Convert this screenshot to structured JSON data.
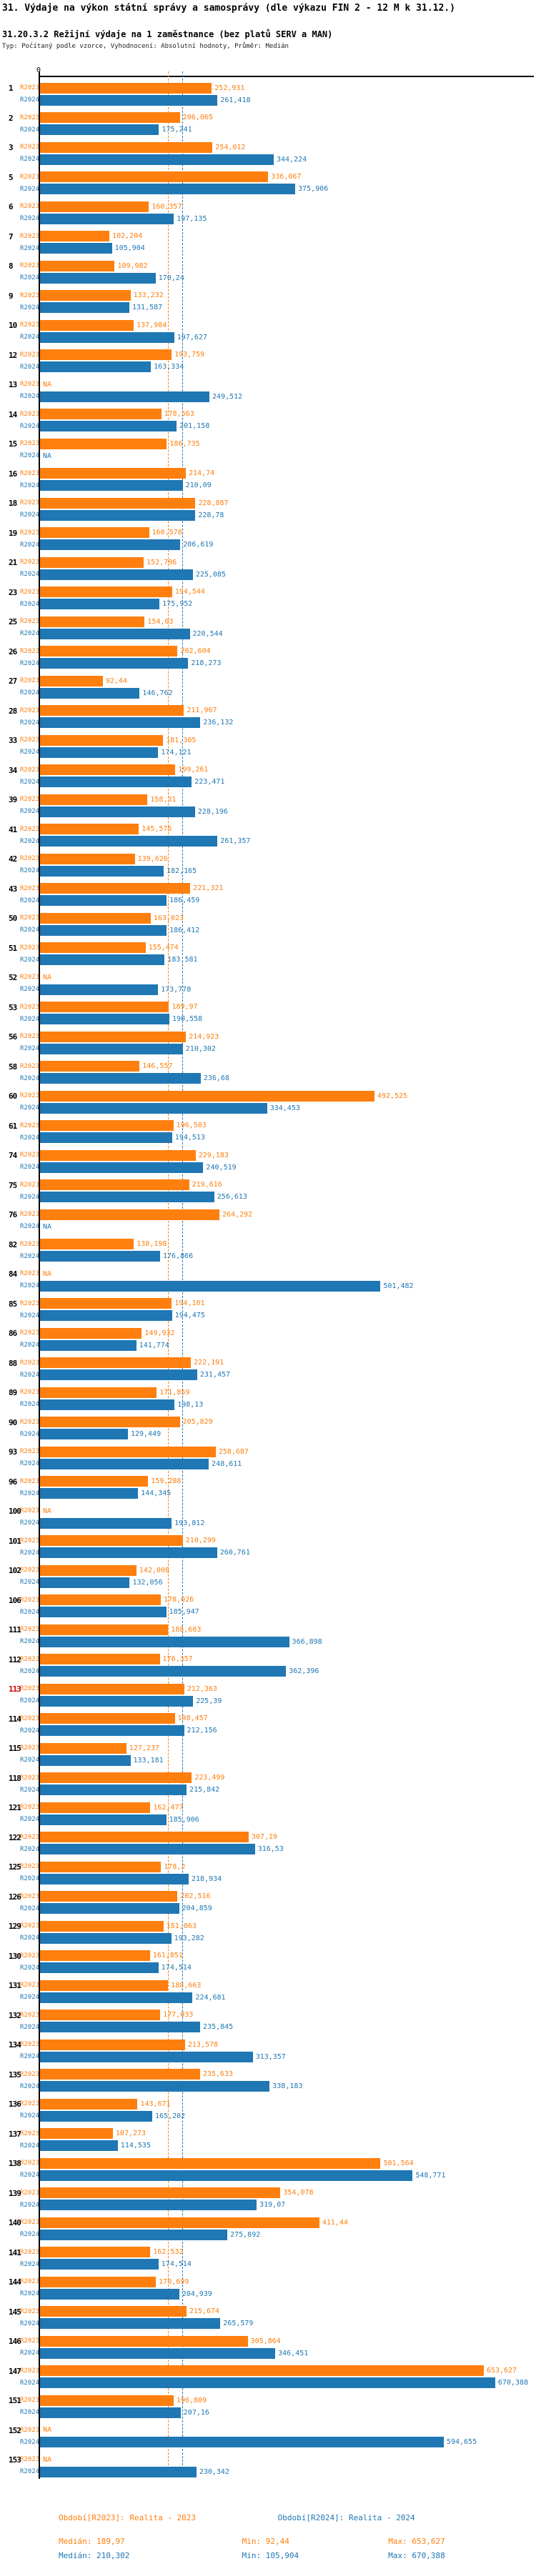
{
  "title": "31. Výdaje na výkon státní správy a samosprávy (dle výkazu FIN 2 - 12 M k 31.12.)",
  "subtitle": "31.20.3.2 Režijní výdaje na 1 zaměstnance (bez platů SERV a MAN)",
  "type_line": "Typ: Počítaný podle vzorce, Vyhodnocení: Absolutní hodnoty, Průměr: Medián",
  "colors": {
    "r2023": "#ff7f0e",
    "r2024": "#1f77b4",
    "highlight": "#cc0000"
  },
  "axis": {
    "zero_label": "0"
  },
  "series_labels": {
    "r2023": "R2023",
    "r2024": "R2024"
  },
  "legend": {
    "r2023": "Období[R2023]: Realita - 2023",
    "r2024": "Období[R2024]: Realita - 2024"
  },
  "stats": {
    "r2023": {
      "median": "Medián: 189,97",
      "min": "Min: 92,44",
      "max": "Max: 653,627"
    },
    "r2024": {
      "median": "Medián: 210,302",
      "min": "Min: 105,904",
      "max": "Max: 670,388"
    }
  },
  "chart_data": {
    "type": "bar",
    "orientation": "horizontal",
    "na_label": "NA",
    "highlighted_category": "113",
    "medians": {
      "R2023": 189.97,
      "R2024": 210.302
    },
    "xlim": [
      0,
      700
    ],
    "categories": [
      "1",
      "2",
      "3",
      "5",
      "6",
      "7",
      "8",
      "9",
      "10",
      "12",
      "13",
      "14",
      "15",
      "16",
      "18",
      "19",
      "21",
      "23",
      "25",
      "26",
      "27",
      "28",
      "33",
      "34",
      "39",
      "41",
      "42",
      "43",
      "50",
      "51",
      "52",
      "53",
      "56",
      "58",
      "60",
      "61",
      "74",
      "75",
      "76",
      "82",
      "84",
      "85",
      "86",
      "88",
      "89",
      "90",
      "93",
      "96",
      "100",
      "101",
      "102",
      "106",
      "111",
      "112",
      "113",
      "114",
      "115",
      "118",
      "121",
      "122",
      "125",
      "126",
      "129",
      "130",
      "131",
      "132",
      "134",
      "135",
      "136",
      "137",
      "138",
      "139",
      "140",
      "141",
      "144",
      "145",
      "146",
      "147",
      "151",
      "152",
      "153"
    ],
    "series": [
      {
        "name": "R2023",
        "values": [
          "252,931",
          "206,065",
          "254,012",
          "336,067",
          "160,357",
          "102,204",
          "109,982",
          "133,232",
          "137,984",
          "193,759",
          null,
          "178,563",
          "186,735",
          "214,74",
          "228,887",
          "160,578",
          "152,796",
          "194,544",
          "154,03",
          "202,604",
          "92,44",
          "211,967",
          "181,305",
          "199,261",
          "158,31",
          "145,575",
          "139,626",
          "221,321",
          "163,023",
          "155,474",
          null,
          "189,97",
          "214,923",
          "146,557",
          "492,525",
          "196,503",
          "229,183",
          "219,616",
          "264,292",
          "138,198",
          null,
          "194,101",
          "149,932",
          "222,191",
          "171,859",
          "205,829",
          "258,687",
          "159,288",
          null,
          "210,299",
          "142,008",
          "178,026",
          "188,663",
          "176,357",
          "212,363",
          "198,457",
          "127,237",
          "223,499",
          "162,477",
          "307,19",
          "178,2",
          "202,516",
          "181,863",
          "161,851",
          "188,663",
          "177,033",
          "213,578",
          "235,633",
          "143,671",
          "107,273",
          "501,564",
          "354,078",
          "411,44",
          "162,532",
          "170,699",
          "215,674",
          "305,864",
          "653,627",
          "196,809",
          null,
          null
        ]
      },
      {
        "name": "R2024",
        "values": [
          "261,418",
          "175,241",
          "344,224",
          "375,906",
          "197,135",
          "105,904",
          "170,24",
          "131,587",
          "197,627",
          "163,334",
          "249,512",
          "201,158",
          null,
          "210,09",
          "228,78",
          "206,619",
          "225,085",
          "175,952",
          "220,544",
          "218,273",
          "146,762",
          "236,132",
          "174,121",
          "223,471",
          "228,196",
          "261,357",
          "182,165",
          "186,459",
          "186,412",
          "183,581",
          "173,778",
          "190,558",
          "210,302",
          "236,68",
          "334,453",
          "194,513",
          "240,519",
          "256,613",
          null,
          "176,866",
          "501,482",
          "194,475",
          "141,774",
          "231,457",
          "198,13",
          "129,449",
          "248,611",
          "144,345",
          "193,812",
          "260,761",
          "132,056",
          "185,947",
          "366,898",
          "362,396",
          "225,39",
          "212,156",
          "133,181",
          "215,842",
          "185,906",
          "316,53",
          "218,934",
          "204,859",
          "193,282",
          "174,514",
          "224,681",
          "235,845",
          "313,357",
          "338,183",
          "165,202",
          "114,535",
          "548,771",
          "319,07",
          "275,892",
          "174,514",
          "204,939",
          "265,579",
          "346,451",
          "670,388",
          "207,16",
          "594,655",
          "230,342"
        ]
      }
    ]
  }
}
